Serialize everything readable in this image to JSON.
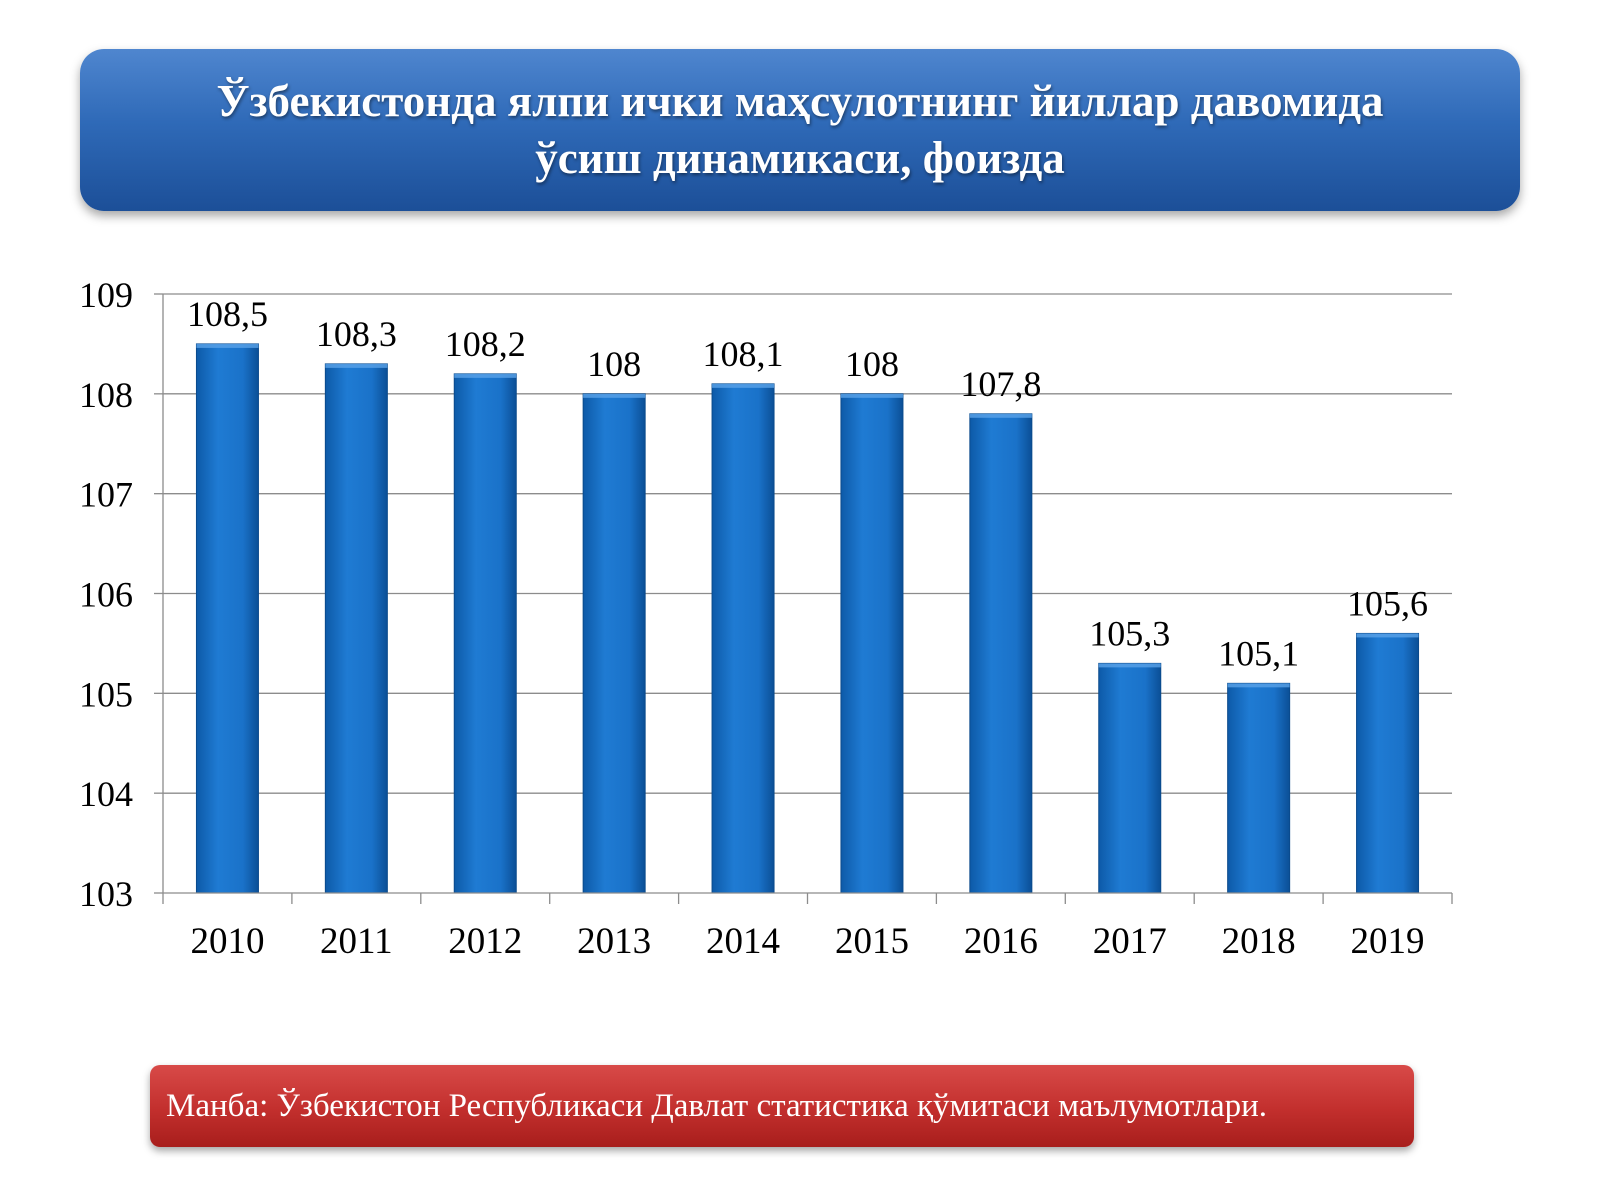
{
  "title": "Ўзбекистонда ялпи ички маҳсулотнинг йиллар давомида\nўсиш динамикаси, фоизда",
  "source": "Манба: Ўзбекистон Республикаси Давлат статистика қўмитаси маълумотлари.",
  "colors": {
    "title_bg": "#2f6ab8",
    "bar": "#1a72c9",
    "source_bg": "#c22f2d",
    "text": "#000000"
  },
  "chart_data": {
    "type": "bar",
    "categories": [
      "2010",
      "2011",
      "2012",
      "2013",
      "2014",
      "2015",
      "2016",
      "2017",
      "2018",
      "2019"
    ],
    "values": [
      108.5,
      108.3,
      108.2,
      108,
      108.1,
      108,
      107.8,
      105.3,
      105.1,
      105.6
    ],
    "data_labels": [
      "108,5",
      "108,3",
      "108,2",
      "108",
      "108,1",
      "108",
      "107,8",
      "105,3",
      "105,1",
      "105,6"
    ],
    "yticks": [
      "103",
      "104",
      "105",
      "106",
      "107",
      "108",
      "109"
    ],
    "ylim": [
      103,
      109
    ],
    "grid": true,
    "legend": "none"
  }
}
